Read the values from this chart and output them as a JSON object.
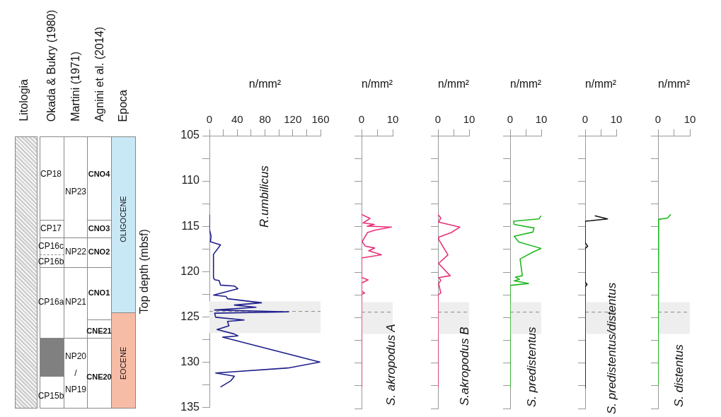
{
  "chart_data": [
    {
      "type": "other",
      "annotations": [
        "Litologia",
        "Okada & Bukry (1980)",
        "Martini (1971)",
        "Agnini et al. (2014)",
        "Epoca",
        "CP18",
        "CP17",
        "CP16c",
        "CP16b",
        "CP16a",
        "CP15b",
        "NP23",
        "NP22",
        "NP21",
        "NP20",
        "/",
        "NP19",
        "CNO4",
        "CNO3",
        "CNO2",
        "CNO1",
        "CNE21",
        "CNE20",
        "OLIGOCENE",
        "EOCENE"
      ]
    },
    {
      "type": "line",
      "xlabel": "n/mm²",
      "ylabel": "Top depth (mbsf)",
      "xlim": [
        0,
        160
      ],
      "xticks": [
        0,
        {
          "value": 20,
          "label": null
        },
        40,
        {
          "value": 60,
          "label": null
        },
        80,
        {
          "value": 100,
          "label": null
        },
        120,
        {
          "value": 140,
          "label": null
        },
        160
      ],
      "ylim": [
        135,
        105
      ],
      "yticks": [
        105,
        {
          "value": 107.5,
          "label": null
        },
        110,
        {
          "value": 112.5,
          "label": null
        },
        115,
        {
          "value": 117.5,
          "label": null
        },
        120,
        {
          "value": 122.5,
          "label": null
        },
        125,
        {
          "value": 127.5,
          "label": null
        },
        130,
        {
          "value": 132.5,
          "label": null
        },
        135
      ],
      "grid": false,
      "legend": false,
      "marker": "none",
      "bands": [
        {
          "axis": "y",
          "from": 123.3,
          "to": 126.8,
          "color": "#eeeeee"
        }
      ],
      "ref_lines": [
        {
          "axis": "y",
          "value": 124.4,
          "line_style": "dashed",
          "color": "#888888"
        }
      ],
      "series": [
        {
          "name": "R.umbilicus",
          "color": "#1f1f8c",
          "x": [
            0,
            0,
            2.4,
            1.4,
            16,
            5.8,
            5.8,
            7.5,
            14,
            16,
            36,
            41,
            6,
            24,
            26,
            75,
            36,
            67,
            7.5,
            114,
            7.5,
            9,
            50,
            26,
            28,
            11,
            36,
            41,
            19,
            159,
            113,
            9,
            36,
            31,
            16
          ],
          "values": [
            113.76,
            115.35,
            116.1,
            116.7,
            117.05,
            118.1,
            120.7,
            120.9,
            121.0,
            121.5,
            121.6,
            121.9,
            122.6,
            122.75,
            123.0,
            123.45,
            123.7,
            123.95,
            124.25,
            124.45,
            124.6,
            125.05,
            125.35,
            125.5,
            126.0,
            126.4,
            126.9,
            127.1,
            127.25,
            130.0,
            130.65,
            131.2,
            131.55,
            132.05,
            132.75
          ]
        }
      ]
    },
    {
      "type": "line",
      "xlabel": "n/mm²",
      "xlim": [
        0,
        10
      ],
      "xticks": [
        0,
        {
          "value": 5,
          "label": null
        },
        10
      ],
      "ylim": [
        135,
        105
      ],
      "yticks": [
        {
          "value": 105,
          "label": null
        },
        {
          "value": 107.5,
          "label": null
        },
        {
          "value": 110,
          "label": null
        },
        {
          "value": 112.5,
          "label": null
        },
        {
          "value": 115,
          "label": null
        },
        {
          "value": 117.5,
          "label": null
        },
        {
          "value": 120,
          "label": null
        },
        {
          "value": 122.5,
          "label": null
        },
        {
          "value": 125,
          "label": null
        },
        {
          "value": 127.5,
          "label": null
        },
        {
          "value": 130,
          "label": null
        },
        {
          "value": 132.5,
          "label": null
        },
        {
          "value": 135,
          "label": null
        }
      ],
      "tick_labels": "x",
      "grid": false,
      "legend": false,
      "marker": "none",
      "bands": [
        {
          "axis": "y",
          "from": 123.3,
          "to": 126.8,
          "color": "#eeeeee"
        }
      ],
      "ref_lines": [
        {
          "axis": "y",
          "value": 124.4,
          "line_style": "dashed",
          "color": "#888888"
        }
      ],
      "series": [
        {
          "name": "S. akropodus A",
          "color": "#e8307a",
          "x": [
            0,
            2.7,
            0.5,
            4.1,
            1.8,
            9.6,
            4.2,
            1.9,
            0.2,
            1.2,
            4.2,
            2.3,
            6.4,
            0,
            0,
            2.1,
            0,
            0,
            1,
            0,
            0
          ],
          "values": [
            113.66,
            114.1,
            114.6,
            114.75,
            114.95,
            115.05,
            115.4,
            115.65,
            116.65,
            117.15,
            117.35,
            117.65,
            118.1,
            118.45,
            120.6,
            120.85,
            121.2,
            122.1,
            122.3,
            122.45,
            132.65
          ]
        }
      ]
    },
    {
      "type": "line",
      "xlabel": "n/mm²",
      "xlim": [
        0,
        10
      ],
      "xticks": [
        0,
        {
          "value": 5,
          "label": null
        },
        10
      ],
      "ylim": [
        135,
        105
      ],
      "yticks": [
        {
          "value": 105,
          "label": null
        },
        {
          "value": 107.5,
          "label": null
        },
        {
          "value": 110,
          "label": null
        },
        {
          "value": 112.5,
          "label": null
        },
        {
          "value": 115,
          "label": null
        },
        {
          "value": 117.5,
          "label": null
        },
        {
          "value": 120,
          "label": null
        },
        {
          "value": 122.5,
          "label": null
        },
        {
          "value": 125,
          "label": null
        },
        {
          "value": 127.5,
          "label": null
        },
        {
          "value": 130,
          "label": null
        },
        {
          "value": 132.5,
          "label": null
        },
        {
          "value": 135,
          "label": null
        }
      ],
      "tick_labels": "x",
      "grid": false,
      "legend": false,
      "marker": "none",
      "bands": [
        {
          "axis": "y",
          "from": 123.3,
          "to": 126.8,
          "color": "#eeeeee"
        }
      ],
      "ref_lines": [
        {
          "axis": "y",
          "value": 124.4,
          "line_style": "dashed",
          "color": "#888888"
        }
      ],
      "series": [
        {
          "name": "S.akropodus B",
          "color": "#e8307a",
          "x": [
            0,
            0.9,
            0.2,
            7,
            4.3,
            0.3,
            0.2,
            3.2,
            0.2,
            3.9,
            0.3,
            0.9,
            0.2,
            0.9,
            0,
            0
          ],
          "values": [
            113.66,
            114.05,
            114.5,
            115.05,
            115.65,
            116.15,
            116.4,
            118.1,
            119.05,
            120.4,
            120.6,
            120.9,
            121.25,
            122.3,
            122.5,
            132.65
          ]
        }
      ]
    },
    {
      "type": "line",
      "xlabel": "n/mm²",
      "xlim": [
        0,
        10
      ],
      "xticks": [
        0,
        {
          "value": 5,
          "label": null
        },
        10
      ],
      "ylim": [
        135,
        105
      ],
      "yticks": [
        {
          "value": 105,
          "label": null
        },
        {
          "value": 107.5,
          "label": null
        },
        {
          "value": 110,
          "label": null
        },
        {
          "value": 112.5,
          "label": null
        },
        {
          "value": 115,
          "label": null
        },
        {
          "value": 117.5,
          "label": null
        },
        {
          "value": 120,
          "label": null
        },
        {
          "value": 122.5,
          "label": null
        },
        {
          "value": 125,
          "label": null
        },
        {
          "value": 127.5,
          "label": null
        },
        {
          "value": 130,
          "label": null
        },
        {
          "value": 132.5,
          "label": null
        },
        {
          "value": 135,
          "label": null
        }
      ],
      "tick_labels": "x",
      "grid": false,
      "legend": false,
      "marker": "none",
      "bands": [
        {
          "axis": "y",
          "from": 123.3,
          "to": 126.8,
          "color": "#eeeeee"
        }
      ],
      "ref_lines": [
        {
          "axis": "y",
          "value": 124.4,
          "line_style": "dashed",
          "color": "#888888"
        }
      ],
      "series": [
        {
          "name": "S. predistentus",
          "color": "#22b822",
          "x": [
            10,
            9.2,
            1.1,
            1.3,
            7.7,
            7.3,
            1.3,
            2.8,
            10,
            7.3,
            3.2,
            3.9,
            1.7,
            3,
            1.3,
            5.9,
            0.4,
            0,
            0
          ],
          "values": [
            113.8,
            114.15,
            114.4,
            114.75,
            115.15,
            115.6,
            116.05,
            116.7,
            117.4,
            117.8,
            118.55,
            120.4,
            120.55,
            120.8,
            120.95,
            121.25,
            121.45,
            121.5,
            132.75
          ]
        }
      ]
    },
    {
      "type": "line",
      "xlabel": "n/mm²",
      "xlim": [
        0,
        10
      ],
      "xticks": [
        0,
        {
          "value": 5,
          "label": null
        },
        10
      ],
      "ylim": [
        135,
        105
      ],
      "yticks": [
        {
          "value": 105,
          "label": null
        },
        {
          "value": 107.5,
          "label": null
        },
        {
          "value": 110,
          "label": null
        },
        {
          "value": 112.5,
          "label": null
        },
        {
          "value": 115,
          "label": null
        },
        {
          "value": 117.5,
          "label": null
        },
        {
          "value": 120,
          "label": null
        },
        {
          "value": 122.5,
          "label": null
        },
        {
          "value": 125,
          "label": null
        },
        {
          "value": 127.5,
          "label": null
        },
        {
          "value": 130,
          "label": null
        },
        {
          "value": 132.5,
          "label": null
        },
        {
          "value": 135,
          "label": null
        }
      ],
      "tick_labels": "x",
      "grid": false,
      "legend": false,
      "marker": "none",
      "bands": [
        {
          "axis": "y",
          "from": 123.3,
          "to": 126.8,
          "color": "#eeeeee"
        }
      ],
      "ref_lines": [
        {
          "axis": "y",
          "value": 124.4,
          "line_style": "dashed",
          "color": "#888888"
        }
      ],
      "series": [
        {
          "name": "S. predistentus/distentus",
          "color": "#111111",
          "x": [
            3.1,
            7.2,
            1.8,
            0,
            0,
            0.8,
            0,
            0,
            0.6,
            0,
            0
          ],
          "values": [
            113.8,
            114.15,
            114.35,
            114.4,
            116.75,
            117.15,
            117.4,
            121.1,
            121.35,
            121.6,
            132.75
          ]
        }
      ]
    },
    {
      "type": "line",
      "xlabel": "n/mm²",
      "xlim": [
        0,
        10
      ],
      "xticks": [
        0,
        {
          "value": 5,
          "label": null
        },
        10
      ],
      "ylim": [
        135,
        105
      ],
      "yticks": [
        {
          "value": 105,
          "label": null
        },
        {
          "value": 107.5,
          "label": null
        },
        {
          "value": 110,
          "label": null
        },
        {
          "value": 112.5,
          "label": null
        },
        {
          "value": 115,
          "label": null
        },
        {
          "value": 117.5,
          "label": null
        },
        {
          "value": 120,
          "label": null
        },
        {
          "value": 122.5,
          "label": null
        },
        {
          "value": 125,
          "label": null
        },
        {
          "value": 127.5,
          "label": null
        },
        {
          "value": 130,
          "label": null
        },
        {
          "value": 132.5,
          "label": null
        },
        {
          "value": 135,
          "label": null
        }
      ],
      "tick_labels": "x",
      "grid": false,
      "legend": false,
      "marker": "none",
      "bands": [
        {
          "axis": "y",
          "from": 123.3,
          "to": 126.8,
          "color": "#eeeeee"
        }
      ],
      "ref_lines": [
        {
          "axis": "y",
          "value": 124.4,
          "line_style": "dashed",
          "color": "#888888"
        }
      ],
      "series": [
        {
          "name": "S. distentus",
          "color": "#22b822",
          "x": [
            4,
            3,
            0.2,
            0,
            0
          ],
          "values": [
            113.65,
            114.05,
            114.2,
            114.25,
            132.5
          ]
        }
      ]
    }
  ]
}
